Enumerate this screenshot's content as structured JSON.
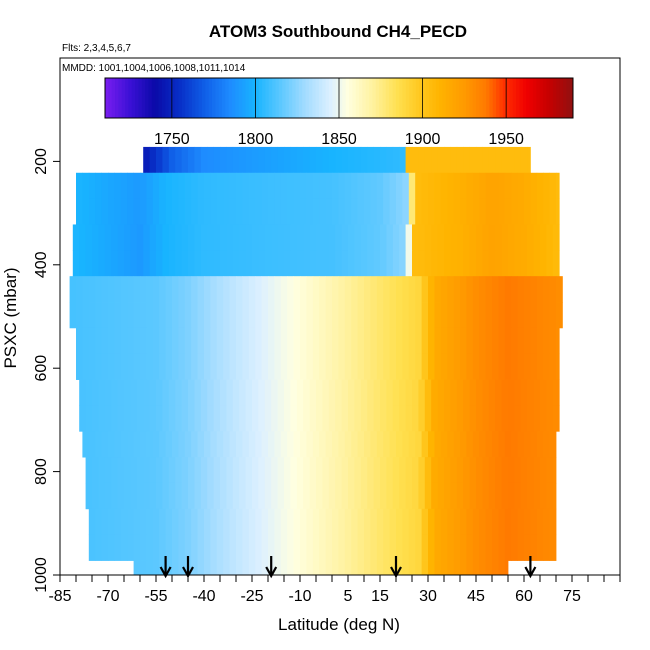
{
  "chart_data": {
    "type": "heatmap",
    "title": "ATOM3 Southbound CH4_PECD",
    "subtitle_flights": "Flts: 2,3,4,5,6,7",
    "subtitle_dates": "MMDD: 1001,1004,1006,1008,1011,1014",
    "xlabel": "Latitude (deg N)",
    "ylabel": "PSXC (mbar)",
    "xlim": [
      -85,
      90
    ],
    "ylim": [
      1000,
      0
    ],
    "y_reversed": true,
    "x_ticks": [
      -85,
      -70,
      -55,
      -40,
      -25,
      -10,
      5,
      15,
      30,
      45,
      60,
      75
    ],
    "x_tick_labels": [
      "-85",
      "-70",
      "-55",
      "-40",
      "-25",
      "-10",
      "5",
      "15",
      "30",
      "45",
      "60",
      "75"
    ],
    "x_minor_step": 5,
    "y_ticks": [
      200,
      400,
      600,
      800,
      1000
    ],
    "y_tick_labels": [
      "200",
      "400",
      "600",
      "800",
      "1000"
    ],
    "colorbar": {
      "range": [
        1710,
        1990
      ],
      "ticks": [
        1750,
        1800,
        1850,
        1900,
        1950
      ],
      "tick_labels": [
        "1750",
        "1800",
        "1850",
        "1900",
        "1950"
      ],
      "colors": [
        [
          1710,
          "#7a1ef0"
        ],
        [
          1725,
          "#3b10d6"
        ],
        [
          1740,
          "#0a0aa8"
        ],
        [
          1755,
          "#0830c8"
        ],
        [
          1770,
          "#1060e8"
        ],
        [
          1785,
          "#1e8cff"
        ],
        [
          1800,
          "#18b4ff"
        ],
        [
          1815,
          "#5cc8ff"
        ],
        [
          1830,
          "#a4dcff"
        ],
        [
          1845,
          "#dcf0ff"
        ],
        [
          1855,
          "#ffffe0"
        ],
        [
          1870,
          "#fff2a0"
        ],
        [
          1885,
          "#ffe050"
        ],
        [
          1898,
          "#ffc820"
        ],
        [
          1910,
          "#ffb400"
        ],
        [
          1925,
          "#ff9a00"
        ],
        [
          1938,
          "#ff7a00"
        ],
        [
          1950,
          "#ff2a00"
        ],
        [
          1962,
          "#f00000"
        ],
        [
          1975,
          "#c80000"
        ],
        [
          1990,
          "#901010"
        ]
      ]
    },
    "layers": [
      {
        "p_top": 172,
        "p_bot": 222,
        "lat_min": -59,
        "lat_max": 62
      },
      {
        "p_top": 222,
        "p_bot": 272,
        "lat_min": -80,
        "lat_max": 71
      },
      {
        "p_top": 272,
        "p_bot": 322,
        "lat_min": -80,
        "lat_max": 71
      },
      {
        "p_top": 322,
        "p_bot": 372,
        "lat_min": -81,
        "lat_max": 71
      },
      {
        "p_top": 372,
        "p_bot": 422,
        "lat_min": -81,
        "lat_max": 71
      },
      {
        "p_top": 422,
        "p_bot": 472,
        "lat_min": -82,
        "lat_max": 72
      },
      {
        "p_top": 472,
        "p_bot": 522,
        "lat_min": -82,
        "lat_max": 72
      },
      {
        "p_top": 522,
        "p_bot": 572,
        "lat_min": -80,
        "lat_max": 71
      },
      {
        "p_top": 572,
        "p_bot": 622,
        "lat_min": -80,
        "lat_max": 71
      },
      {
        "p_top": 622,
        "p_bot": 672,
        "lat_min": -79,
        "lat_max": 71
      },
      {
        "p_top": 672,
        "p_bot": 722,
        "lat_min": -79,
        "lat_max": 71
      },
      {
        "p_top": 722,
        "p_bot": 772,
        "lat_min": -78,
        "lat_max": 70
      },
      {
        "p_top": 772,
        "p_bot": 822,
        "lat_min": -77,
        "lat_max": 70
      },
      {
        "p_top": 822,
        "p_bot": 872,
        "lat_min": -77,
        "lat_max": 70
      },
      {
        "p_top": 872,
        "p_bot": 922,
        "lat_min": -76,
        "lat_max": 70
      },
      {
        "p_top": 922,
        "p_bot": 972,
        "lat_min": -76,
        "lat_max": 70
      },
      {
        "p_top": 972,
        "p_bot": 1000,
        "lat_min": -62,
        "lat_max": 55
      }
    ],
    "profile": {
      "upper_lat": [
        -82,
        -60,
        -52,
        -40,
        -20,
        0,
        15,
        23,
        26,
        40,
        50,
        60,
        72
      ],
      "upper_ch4": [
        1802,
        1790,
        1800,
        1805,
        1808,
        1810,
        1816,
        1825,
        1905,
        1912,
        1920,
        1915,
        1905
      ],
      "lower_lat": [
        -82,
        -55,
        -45,
        -30,
        -15,
        0,
        15,
        27,
        32,
        45,
        55,
        72
      ],
      "lower_ch4": [
        1810,
        1815,
        1822,
        1838,
        1852,
        1866,
        1880,
        1890,
        1915,
        1930,
        1938,
        1930
      ],
      "layer_threshold_mbar": 430,
      "top_layer_lat": [
        -59,
        -50,
        -40,
        0,
        22,
        24,
        62
      ],
      "top_layer_ch4": [
        1745,
        1770,
        1785,
        1800,
        1805,
        1905,
        1905
      ]
    },
    "arrow_latitudes": [
      -52,
      -45,
      -19,
      20,
      62
    ]
  }
}
